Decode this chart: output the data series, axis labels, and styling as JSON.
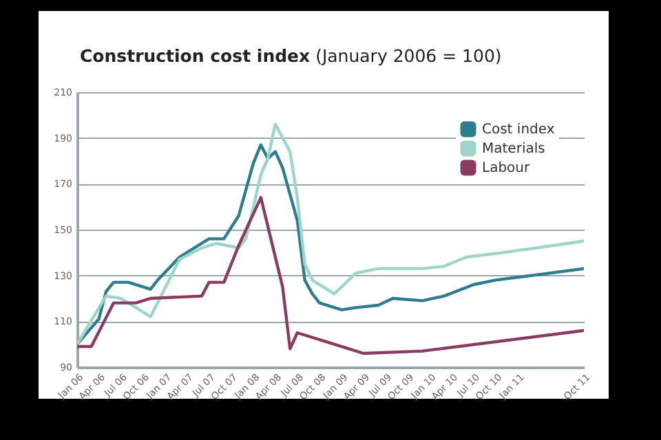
{
  "chart_data": {
    "type": "line",
    "title": "Construction cost index",
    "subtitle": "(January 2006 = 100)",
    "xlim": [
      "2006-01",
      "2011-10"
    ],
    "xticks": [
      {
        "value": "2006-01",
        "label": "Jan 06"
      },
      {
        "value": "2006-04",
        "label": "Apr 06"
      },
      {
        "value": "2006-07",
        "label": "Jul 06"
      },
      {
        "value": "2006-10",
        "label": "Oct 06"
      },
      {
        "value": "2007-01",
        "label": "Jan 07"
      },
      {
        "value": "2007-04",
        "label": "Apr 07"
      },
      {
        "value": "2007-07",
        "label": "Jul 07"
      },
      {
        "value": "2007-10",
        "label": "Oct 07"
      },
      {
        "value": "2008-01",
        "label": "Jan 08"
      },
      {
        "value": "2008-04",
        "label": "Apr 08"
      },
      {
        "value": "2008-07",
        "label": "Jul 08"
      },
      {
        "value": "2008-10",
        "label": "Oct 08"
      },
      {
        "value": "2009-01",
        "label": "Jan 09"
      },
      {
        "value": "2009-04",
        "label": "Apr 09"
      },
      {
        "value": "2009-07",
        "label": "Jul 09"
      },
      {
        "value": "2009-10",
        "label": "Oct 09"
      },
      {
        "value": "2010-01",
        "label": "Jan 10"
      },
      {
        "value": "2010-04",
        "label": "Apr 10"
      },
      {
        "value": "2010-07",
        "label": "Jul 10"
      },
      {
        "value": "2010-10",
        "label": "Oct 10"
      },
      {
        "value": "2011-01",
        "label": "Jan 11"
      },
      {
        "value": "2011-10",
        "label": "Oct 11"
      }
    ],
    "ylim": [
      90,
      210
    ],
    "yticks": [
      90,
      110,
      130,
      150,
      170,
      190,
      210
    ],
    "grid": "y",
    "legend": "top right",
    "marker": "none",
    "line_style": "solid",
    "series": [
      {
        "name": "Cost index",
        "color": "#2e7d8c",
        "x": [
          "2006-01",
          "2006-04",
          "2006-05",
          "2006-06",
          "2006-08",
          "2006-11",
          "2006-12",
          "2007-03",
          "2007-07",
          "2007-09",
          "2007-11",
          "2008-01",
          "2008-02",
          "2008-03",
          "2008-04",
          "2008-05",
          "2008-07",
          "2008-08",
          "2008-09",
          "2008-10",
          "2009-01",
          "2009-03",
          "2009-06",
          "2009-08",
          "2009-12",
          "2010-03",
          "2010-07",
          "2010-10",
          "2011-03",
          "2011-10"
        ],
        "values": [
          100,
          111,
          123,
          127,
          127,
          124,
          128,
          138,
          146,
          146,
          156,
          179,
          187,
          181,
          184,
          177,
          154,
          128,
          122,
          118,
          115,
          116,
          117,
          120,
          119,
          121,
          126,
          128,
          130,
          133
        ]
      },
      {
        "name": "Materials",
        "color": "#9dd4cb",
        "x": [
          "2006-01",
          "2006-05",
          "2006-07",
          "2006-11",
          "2007-03",
          "2007-06",
          "2007-08",
          "2007-11",
          "2007-12",
          "2008-02",
          "2008-03",
          "2008-04",
          "2008-06",
          "2008-07",
          "2008-08",
          "2008-09",
          "2008-12",
          "2009-03",
          "2009-06",
          "2009-12",
          "2010-03",
          "2010-06",
          "2010-11",
          "2011-10"
        ],
        "values": [
          100,
          121,
          120,
          112,
          137,
          142,
          144,
          142,
          146,
          174,
          181,
          196,
          184,
          164,
          135,
          128,
          122,
          131,
          133,
          133,
          134,
          138,
          140,
          145
        ]
      },
      {
        "name": "Labour",
        "color": "#8b3a62",
        "x": [
          "2006-01",
          "2006-03",
          "2006-06",
          "2006-09",
          "2006-11",
          "2007-06",
          "2007-07",
          "2007-09",
          "2007-11",
          "2008-02",
          "2008-05",
          "2008-06",
          "2008-07",
          "2009-04",
          "2009-12",
          "2011-10"
        ],
        "values": [
          99,
          99,
          118,
          118,
          120,
          121,
          127,
          127,
          143,
          164,
          125,
          98,
          105,
          96,
          97,
          106
        ]
      }
    ]
  }
}
